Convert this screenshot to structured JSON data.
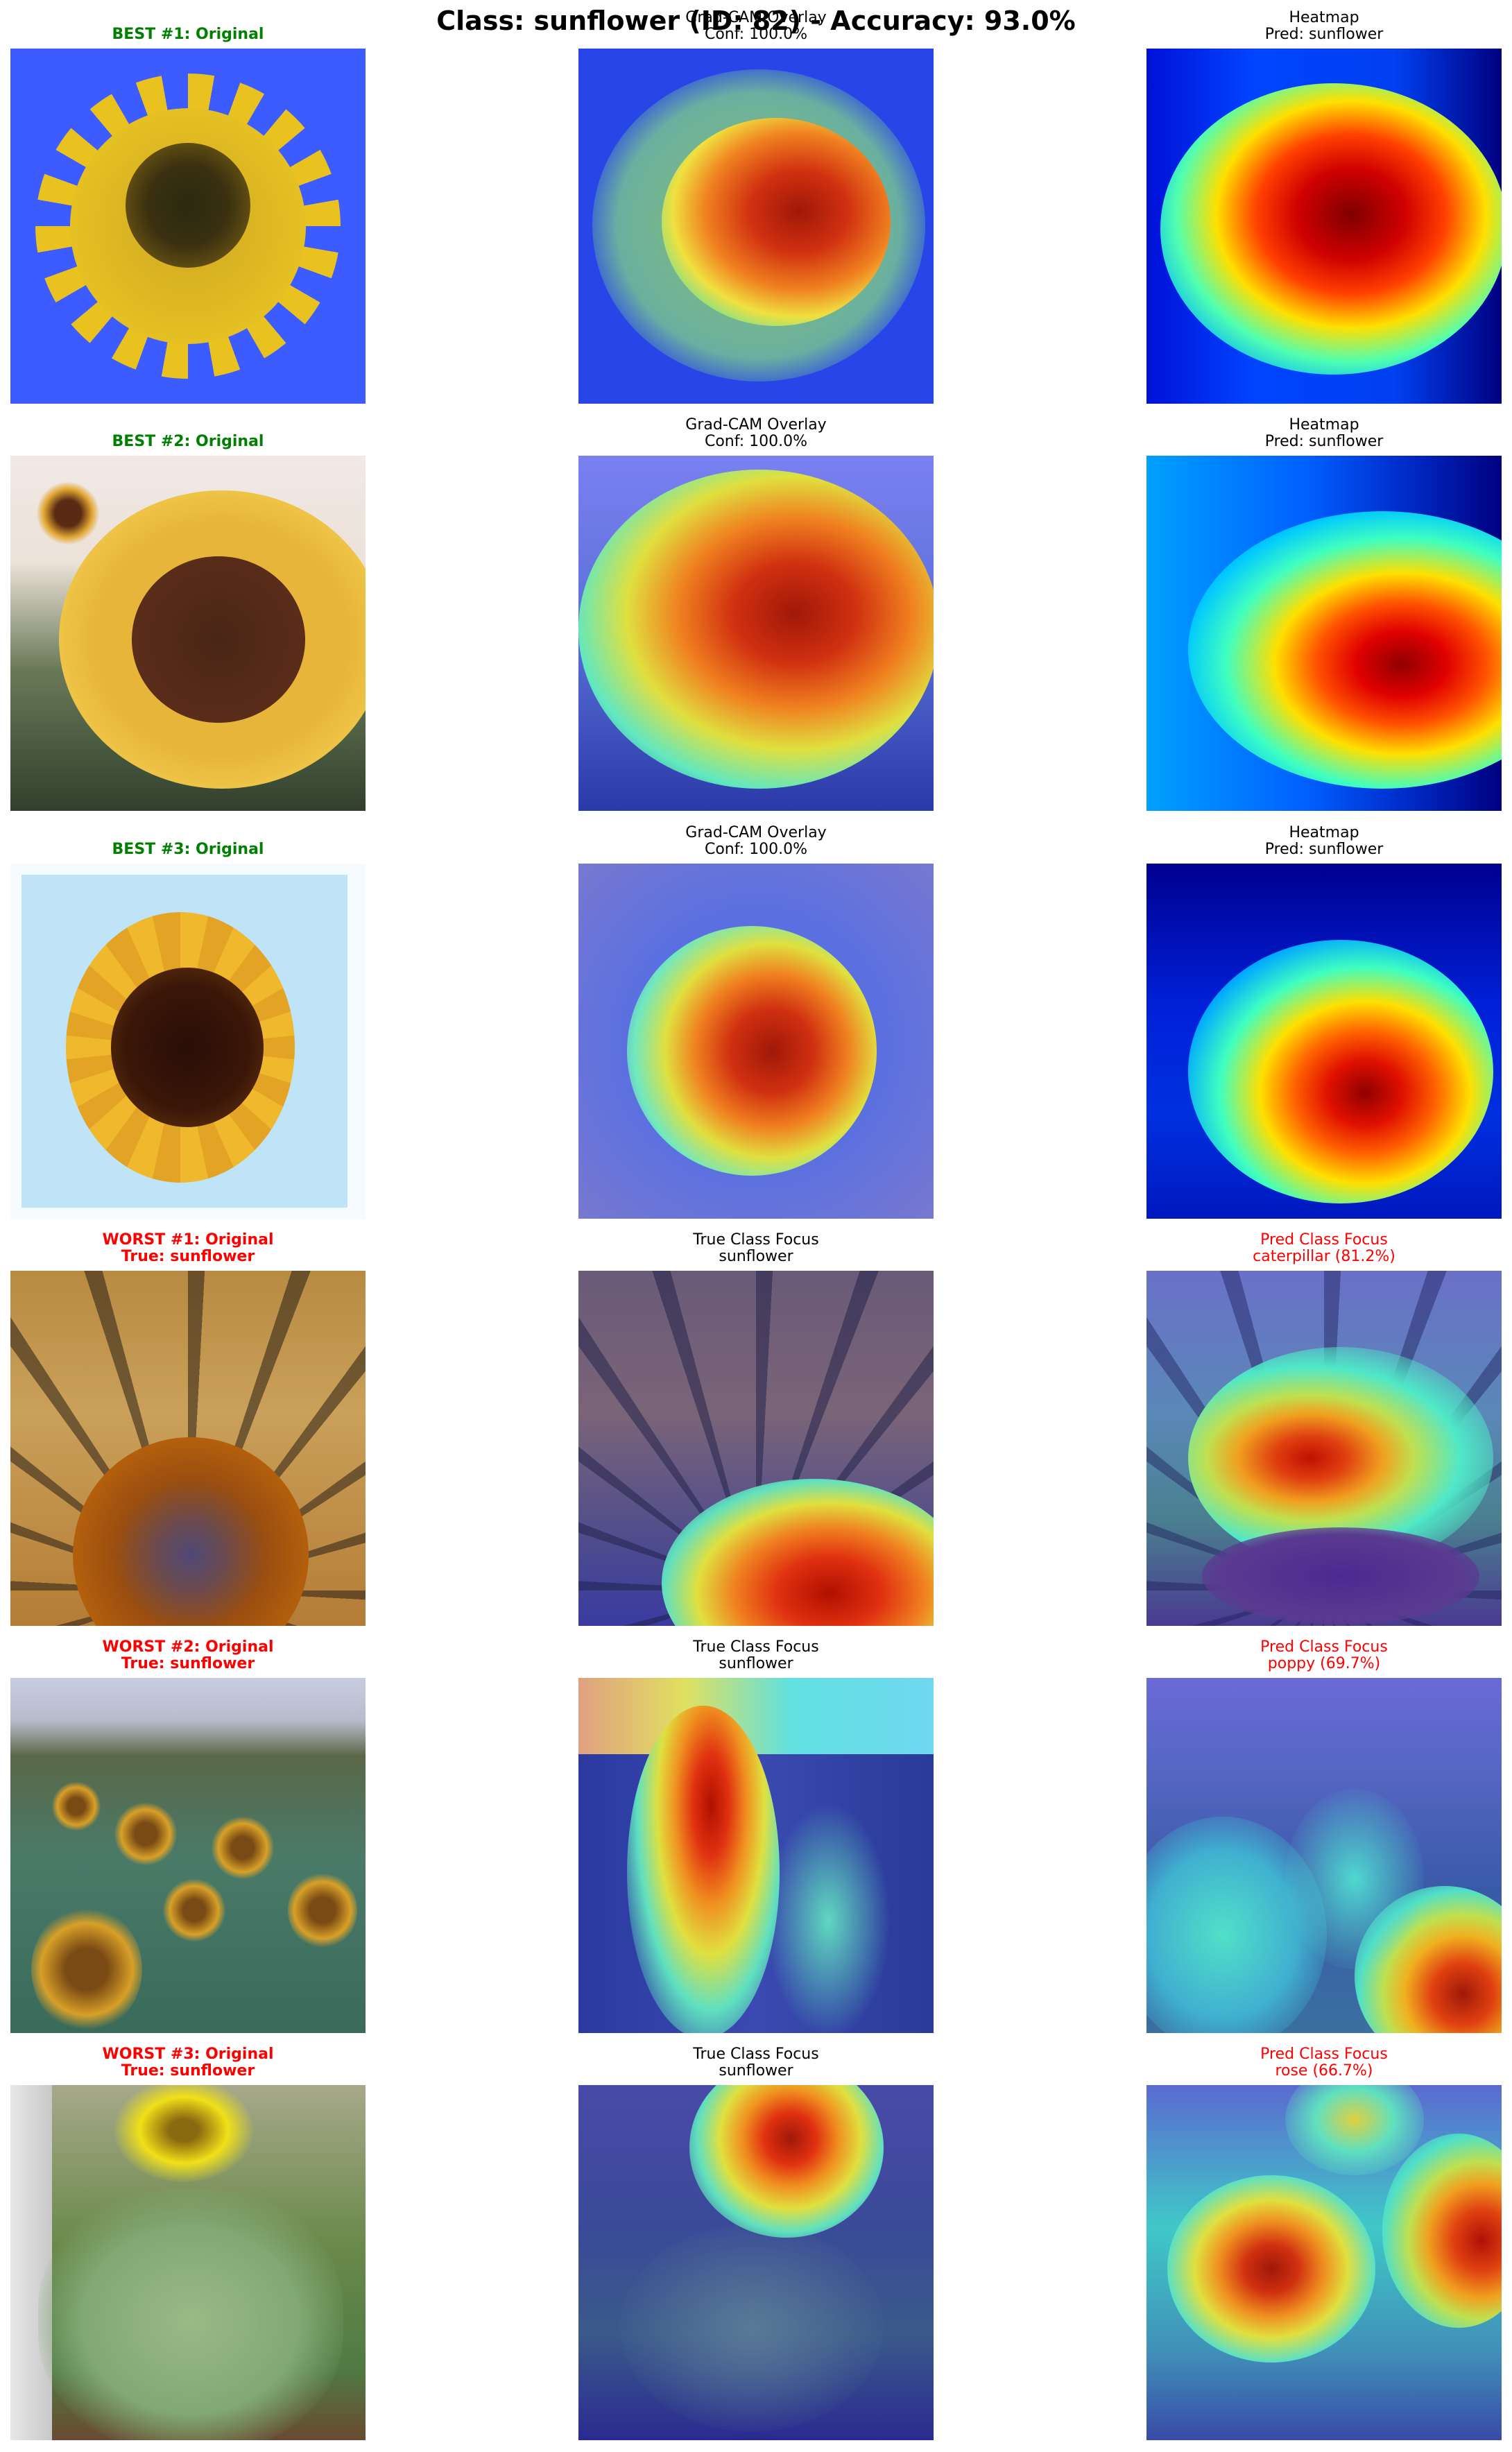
{
  "suptitle": "Class: sunflower (ID: 82) - Accuracy: 93.0%",
  "rows": [
    {
      "original": "BEST #1: Original",
      "middle": "Grad-CAM Overlay\nConf: 100.0%",
      "right": "Heatmap\nPred: sunflower"
    },
    {
      "original": "BEST #2: Original",
      "middle": "Grad-CAM Overlay\nConf: 100.0%",
      "right": "Heatmap\nPred: sunflower"
    },
    {
      "original": "BEST #3: Original",
      "middle": "Grad-CAM Overlay\nConf: 100.0%",
      "right": "Heatmap\nPred: sunflower"
    },
    {
      "original": "WORST #1: Original\nTrue: sunflower",
      "middle": "True Class Focus\nsunflower",
      "right": "Pred Class Focus\ncaterpillar (81.2%)"
    },
    {
      "original": "WORST #2: Original\nTrue: sunflower",
      "middle": "True Class Focus\nsunflower",
      "right": "Pred Class Focus\npoppy (69.7%)"
    },
    {
      "original": "WORST #3: Original\nTrue: sunflower",
      "middle": "True Class Focus\nsunflower",
      "right": "Pred Class Focus\nrose (66.7%)"
    }
  ],
  "colors": {
    "best": "#008000",
    "worst": "#ff0000"
  }
}
